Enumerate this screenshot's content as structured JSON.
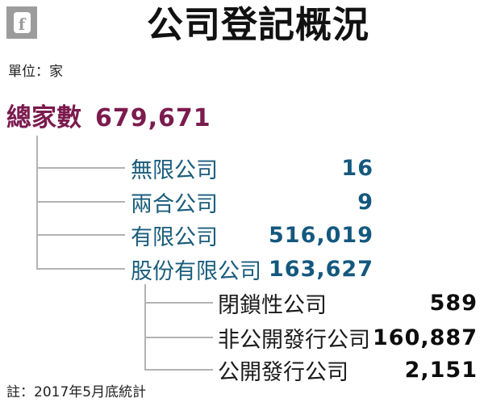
{
  "header": {
    "title": "公司登記概況",
    "unit_label": "單位：家",
    "facebook_icon_letter": "f"
  },
  "tree": {
    "root": {
      "label": "總家數",
      "value": "679,671"
    },
    "level1": [
      {
        "label": "無限公司",
        "value": "16"
      },
      {
        "label": "兩合公司",
        "value": "9"
      },
      {
        "label": "有限公司",
        "value": "516,019"
      },
      {
        "label": "股份有限公司",
        "value": "163,627"
      }
    ],
    "level2": [
      {
        "label": "閉鎖性公司",
        "value": "589"
      },
      {
        "label": "非公開發行公司",
        "value": "160,887"
      },
      {
        "label": "公開發行公司",
        "value": "2,151"
      }
    ]
  },
  "footer": {
    "note": "註：2017年5月底統計"
  },
  "colors": {
    "root_text": "#7b1b4e",
    "level1_text": "#175d80",
    "level2_text": "#1a1a1a",
    "tree_line": "#b3b3b3",
    "title_text": "#111111",
    "icon_gray": "#9c9c9c",
    "background": "#ffffff"
  },
  "chart_data": {
    "type": "table",
    "title": "公司登記概況",
    "unit": "家",
    "note": "註：2017年5月底統計",
    "rows": [
      {
        "label": "總家數",
        "value": 679671,
        "level": 0
      },
      {
        "label": "無限公司",
        "value": 16,
        "level": 1
      },
      {
        "label": "兩合公司",
        "value": 9,
        "level": 1
      },
      {
        "label": "有限公司",
        "value": 516019,
        "level": 1
      },
      {
        "label": "股份有限公司",
        "value": 163627,
        "level": 1
      },
      {
        "label": "閉鎖性公司",
        "value": 589,
        "level": 2,
        "parent": "股份有限公司"
      },
      {
        "label": "非公開發行公司",
        "value": 160887,
        "level": 2,
        "parent": "股份有限公司"
      },
      {
        "label": "公開發行公司",
        "value": 2151,
        "level": 2,
        "parent": "股份有限公司"
      }
    ]
  }
}
